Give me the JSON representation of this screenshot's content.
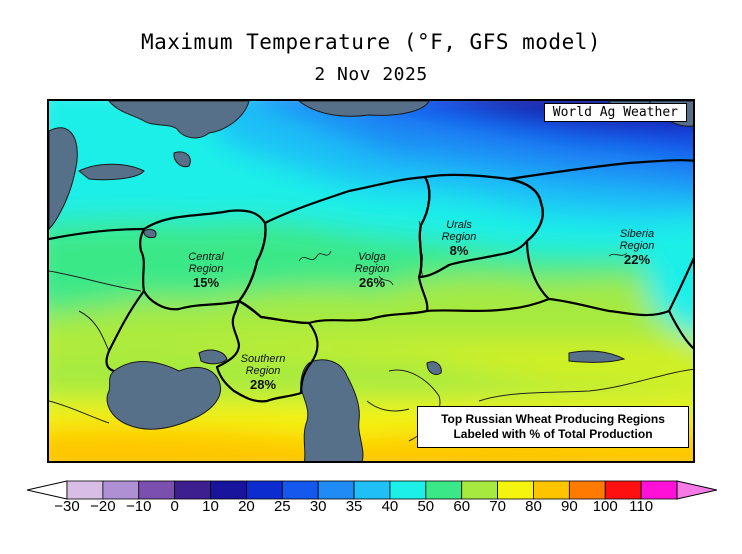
{
  "title": "Maximum Temperature (°F, GFS model)",
  "date": "2 Nov 2025",
  "credit": "World Ag Weather",
  "note": {
    "line1": "Top Russian Wheat Producing Regions",
    "line2": "Labeled with % of Total Production"
  },
  "regions": [
    {
      "name_line1": "Central",
      "name_line2": "Region",
      "percent": "15%"
    },
    {
      "name_line1": "Volga",
      "name_line2": "Region",
      "percent": "26%"
    },
    {
      "name_line1": "Urals",
      "name_line2": "Region",
      "percent": "8%"
    },
    {
      "name_line1": "Siberia",
      "name_line2": "Region",
      "percent": "22%"
    },
    {
      "name_line1": "Southern",
      "name_line2": "Region",
      "percent": "28%"
    }
  ],
  "colorbar": {
    "labels": [
      "−30",
      "−20",
      "−10",
      "0",
      "10",
      "20",
      "25",
      "30",
      "35",
      "40",
      "50",
      "60",
      "70",
      "80",
      "90",
      "100",
      "110"
    ],
    "colors": [
      "#d8bde6",
      "#b090d4",
      "#7a4fae",
      "#3e1f8f",
      "#19149e",
      "#0c2cd0",
      "#1558ee",
      "#1f8cf5",
      "#1ec0f7",
      "#1cefe8",
      "#3be888",
      "#a6ea3f",
      "#f4f40e",
      "#ffc400",
      "#ff7a00",
      "#ff1010",
      "#ff10d8",
      "#f57ae6"
    ]
  },
  "colors": {
    "water": "#56708a",
    "border": "#000000"
  }
}
